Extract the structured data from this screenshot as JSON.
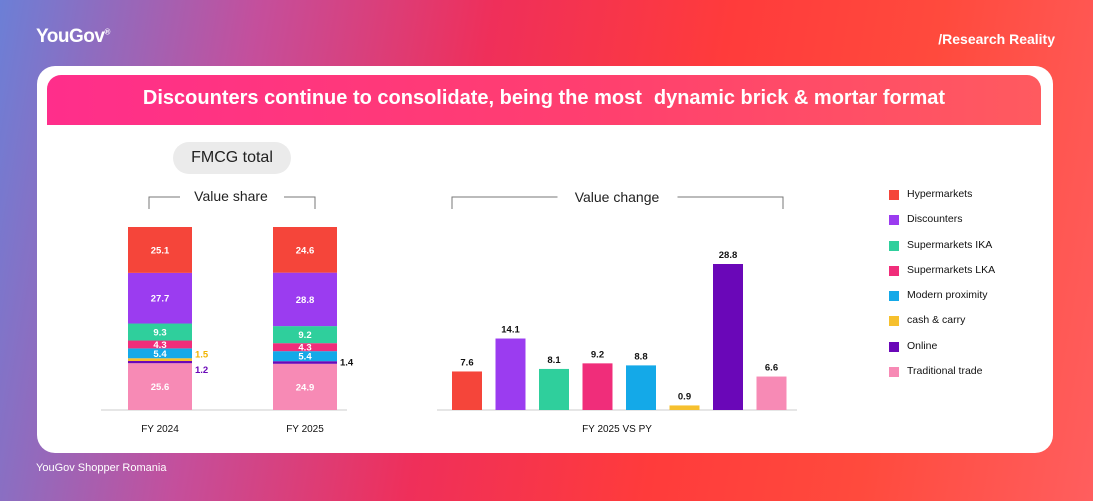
{
  "header": {
    "logo": "YouGov",
    "tagline": "/Research Reality"
  },
  "footer": {
    "source": "YouGov Shopper Romania"
  },
  "banner": {
    "title_part1": "Discounters continue to consolidate, being the most",
    "title_part2": "dynamic brick & mortar format"
  },
  "pill_label": "FMCG total",
  "colors": {
    "Hypermarkets": "#f5453a",
    "Discounters": "#9b3cf0",
    "Supermarkets IKA": "#2fcf9c",
    "Supermarkets LKA": "#f02d7a",
    "Modern proximity": "#14a9e8",
    "cash & carry": "#f6c02e",
    "Online": "#6a07b8",
    "Traditional trade": "#f78ab5"
  },
  "legend": [
    "Hypermarkets",
    "Discounters",
    "Supermarkets IKA",
    "Supermarkets LKA",
    "Modern proximity",
    "cash & carry",
    "Online",
    "Traditional trade"
  ],
  "chart_data": [
    {
      "type": "bar",
      "stacked": true,
      "title": "Value share",
      "categories": [
        "FY 2024",
        "FY 2025"
      ],
      "series": [
        {
          "name": "Traditional trade",
          "values": [
            25.6,
            24.9
          ]
        },
        {
          "name": "Online",
          "values": [
            1.2,
            1.4
          ]
        },
        {
          "name": "cash & carry",
          "values": [
            1.5,
            null
          ]
        },
        {
          "name": "Modern proximity",
          "values": [
            5.4,
            5.4
          ]
        },
        {
          "name": "Supermarkets LKA",
          "values": [
            4.3,
            4.3
          ]
        },
        {
          "name": "Supermarkets IKA",
          "values": [
            9.3,
            9.2
          ]
        },
        {
          "name": "Discounters",
          "values": [
            27.7,
            28.8
          ]
        },
        {
          "name": "Hypermarkets",
          "values": [
            25.1,
            24.6
          ]
        }
      ],
      "ylim": [
        0,
        100
      ]
    },
    {
      "type": "bar",
      "title": "Value change",
      "xlabel": "FY 2025 VS PY",
      "categories": [
        "Hypermarkets",
        "Discounters",
        "Supermarkets IKA",
        "Supermarkets LKA",
        "Modern proximity",
        "cash & carry",
        "Online",
        "Traditional trade"
      ],
      "values": [
        7.6,
        14.1,
        8.1,
        9.2,
        8.8,
        0.9,
        28.8,
        6.6
      ],
      "ylim": [
        0,
        30
      ]
    }
  ]
}
